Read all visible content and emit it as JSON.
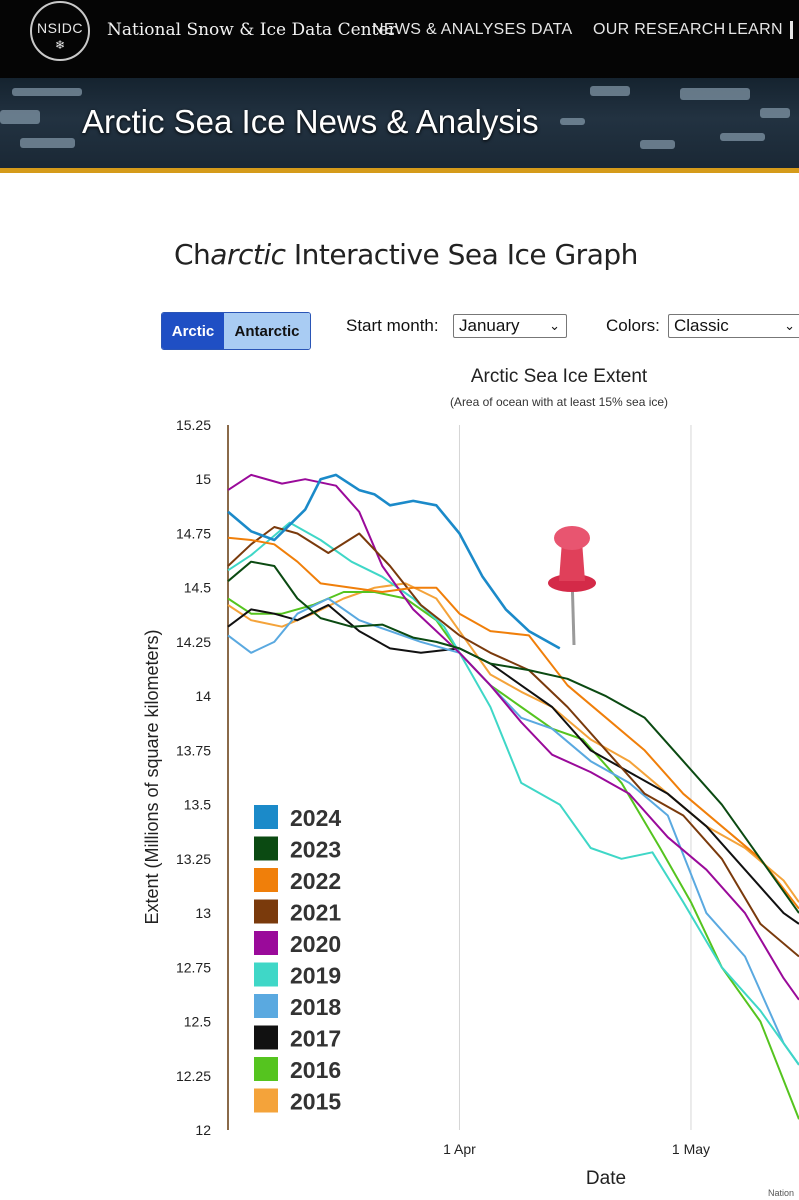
{
  "header": {
    "logo_text": "NSIDC",
    "site_name": "National Snow & Ice Data Center",
    "nav": [
      "NEWS & ANALYSES",
      "DATA",
      "OUR RESEARCH",
      "LEARN"
    ],
    "banner_title": "Arctic Sea Ice News & Analysis",
    "accent": "#d59b1a"
  },
  "page": {
    "title_pre": "Ch",
    "title_em": "arctic",
    "title_post": " Interactive Sea Ice Graph"
  },
  "controls": {
    "hemisphere": {
      "options": [
        "Arctic",
        "Antarctic"
      ],
      "selected": "Arctic"
    },
    "start_month_label": "Start month:",
    "start_month_value": "January",
    "colors_label": "Colors:",
    "colors_value": "Classic"
  },
  "credit": "Nation",
  "icons": {
    "annotation": "pushpin-icon",
    "logo_symbol": "snowflake-icon"
  },
  "chart_data": {
    "type": "line",
    "title": "Arctic Sea Ice Extent",
    "subtitle": "(Area of ocean with at least 15% sea ice)",
    "xlabel": "Date",
    "ylabel": "Extent (Millions of square kilometers)",
    "ylim": [
      12,
      15.25
    ],
    "y_ticks": [
      15.25,
      15,
      14.75,
      14.5,
      14.25,
      14,
      13.75,
      13.5,
      13.25,
      13,
      12.75,
      12.5,
      12.25,
      12
    ],
    "x_ticks": [
      {
        "date": "2024-04-01",
        "label": "1 Apr"
      },
      {
        "date": "2024-05-01",
        "label": "1 May"
      }
    ],
    "xlim": [
      "2024-03-02",
      "2024-05-15"
    ],
    "grid": "vertical",
    "legend_position": "bottom-left",
    "series": [
      {
        "name": "2024",
        "color": "#1b8ac9",
        "points": [
          [
            "2024-03-02",
            14.85
          ],
          [
            "2024-03-05",
            14.76
          ],
          [
            "2024-03-08",
            14.72
          ],
          [
            "2024-03-12",
            14.86
          ],
          [
            "2024-03-14",
            15.0
          ],
          [
            "2024-03-16",
            15.02
          ],
          [
            "2024-03-19",
            14.95
          ],
          [
            "2024-03-21",
            14.93
          ],
          [
            "2024-03-23",
            14.88
          ],
          [
            "2024-03-26",
            14.9
          ],
          [
            "2024-03-29",
            14.88
          ],
          [
            "2024-04-01",
            14.75
          ],
          [
            "2024-04-04",
            14.55
          ],
          [
            "2024-04-07",
            14.4
          ],
          [
            "2024-04-10",
            14.3
          ],
          [
            "2024-04-14",
            14.22
          ]
        ]
      },
      {
        "name": "2023",
        "color": "#0b4a12",
        "points": [
          [
            "2024-03-02",
            14.53
          ],
          [
            "2024-03-05",
            14.62
          ],
          [
            "2024-03-08",
            14.6
          ],
          [
            "2024-03-11",
            14.45
          ],
          [
            "2024-03-14",
            14.36
          ],
          [
            "2024-03-18",
            14.32
          ],
          [
            "2024-03-22",
            14.33
          ],
          [
            "2024-03-26",
            14.27
          ],
          [
            "2024-03-29",
            14.25
          ],
          [
            "2024-04-01",
            14.22
          ],
          [
            "2024-04-05",
            14.15
          ],
          [
            "2024-04-10",
            14.12
          ],
          [
            "2024-04-15",
            14.08
          ],
          [
            "2024-04-20",
            14.0
          ],
          [
            "2024-04-25",
            13.9
          ],
          [
            "2024-04-30",
            13.7
          ],
          [
            "2024-05-05",
            13.5
          ],
          [
            "2024-05-10",
            13.25
          ],
          [
            "2024-05-15",
            13.0
          ]
        ]
      },
      {
        "name": "2022",
        "color": "#f07f0a",
        "points": [
          [
            "2024-03-02",
            14.73
          ],
          [
            "2024-03-05",
            14.72
          ],
          [
            "2024-03-08",
            14.7
          ],
          [
            "2024-03-11",
            14.62
          ],
          [
            "2024-03-14",
            14.52
          ],
          [
            "2024-03-18",
            14.5
          ],
          [
            "2024-03-22",
            14.48
          ],
          [
            "2024-03-26",
            14.5
          ],
          [
            "2024-03-29",
            14.5
          ],
          [
            "2024-04-01",
            14.38
          ],
          [
            "2024-04-05",
            14.3
          ],
          [
            "2024-04-10",
            14.28
          ],
          [
            "2024-04-15",
            14.05
          ],
          [
            "2024-04-20",
            13.9
          ],
          [
            "2024-04-25",
            13.75
          ],
          [
            "2024-04-30",
            13.55
          ],
          [
            "2024-05-05",
            13.4
          ],
          [
            "2024-05-10",
            13.25
          ],
          [
            "2024-05-15",
            13.02
          ]
        ]
      },
      {
        "name": "2021",
        "color": "#7a3a0c",
        "points": [
          [
            "2024-03-02",
            14.6
          ],
          [
            "2024-03-05",
            14.7
          ],
          [
            "2024-03-08",
            14.78
          ],
          [
            "2024-03-11",
            14.75
          ],
          [
            "2024-03-15",
            14.66
          ],
          [
            "2024-03-19",
            14.75
          ],
          [
            "2024-03-23",
            14.6
          ],
          [
            "2024-03-27",
            14.42
          ],
          [
            "2024-04-01",
            14.28
          ],
          [
            "2024-04-05",
            14.2
          ],
          [
            "2024-04-10",
            14.12
          ],
          [
            "2024-04-15",
            13.95
          ],
          [
            "2024-04-20",
            13.75
          ],
          [
            "2024-04-25",
            13.55
          ],
          [
            "2024-04-30",
            13.45
          ],
          [
            "2024-05-05",
            13.25
          ],
          [
            "2024-05-10",
            12.95
          ],
          [
            "2024-05-15",
            12.8
          ]
        ]
      },
      {
        "name": "2020",
        "color": "#9a0a9a",
        "points": [
          [
            "2024-03-02",
            14.95
          ],
          [
            "2024-03-05",
            15.02
          ],
          [
            "2024-03-09",
            14.98
          ],
          [
            "2024-03-12",
            15.0
          ],
          [
            "2024-03-16",
            14.97
          ],
          [
            "2024-03-19",
            14.85
          ],
          [
            "2024-03-22",
            14.6
          ],
          [
            "2024-03-26",
            14.4
          ],
          [
            "2024-04-01",
            14.2
          ],
          [
            "2024-04-05",
            14.05
          ],
          [
            "2024-04-09",
            13.88
          ],
          [
            "2024-04-13",
            13.73
          ],
          [
            "2024-04-18",
            13.65
          ],
          [
            "2024-04-23",
            13.55
          ],
          [
            "2024-04-28",
            13.35
          ],
          [
            "2024-05-03",
            13.2
          ],
          [
            "2024-05-08",
            13.0
          ],
          [
            "2024-05-13",
            12.7
          ],
          [
            "2024-05-15",
            12.6
          ]
        ]
      },
      {
        "name": "2019",
        "color": "#3fd7c7",
        "points": [
          [
            "2024-03-02",
            14.58
          ],
          [
            "2024-03-05",
            14.65
          ],
          [
            "2024-03-10",
            14.8
          ],
          [
            "2024-03-14",
            14.72
          ],
          [
            "2024-03-18",
            14.62
          ],
          [
            "2024-03-22",
            14.55
          ],
          [
            "2024-03-26",
            14.45
          ],
          [
            "2024-03-30",
            14.32
          ],
          [
            "2024-04-01",
            14.2
          ],
          [
            "2024-04-05",
            13.95
          ],
          [
            "2024-04-09",
            13.6
          ],
          [
            "2024-04-14",
            13.5
          ],
          [
            "2024-04-18",
            13.3
          ],
          [
            "2024-04-22",
            13.25
          ],
          [
            "2024-04-26",
            13.28
          ],
          [
            "2024-04-30",
            13.05
          ],
          [
            "2024-05-05",
            12.75
          ],
          [
            "2024-05-10",
            12.55
          ],
          [
            "2024-05-15",
            12.3
          ]
        ]
      },
      {
        "name": "2018",
        "color": "#5aa9e0",
        "points": [
          [
            "2024-03-02",
            14.28
          ],
          [
            "2024-03-05",
            14.2
          ],
          [
            "2024-03-08",
            14.25
          ],
          [
            "2024-03-11",
            14.38
          ],
          [
            "2024-03-15",
            14.45
          ],
          [
            "2024-03-19",
            14.35
          ],
          [
            "2024-03-23",
            14.3
          ],
          [
            "2024-03-27",
            14.25
          ],
          [
            "2024-04-01",
            14.2
          ],
          [
            "2024-04-05",
            14.05
          ],
          [
            "2024-04-09",
            13.9
          ],
          [
            "2024-04-13",
            13.85
          ],
          [
            "2024-04-18",
            13.7
          ],
          [
            "2024-04-23",
            13.6
          ],
          [
            "2024-04-28",
            13.45
          ],
          [
            "2024-05-03",
            13.0
          ],
          [
            "2024-05-08",
            12.8
          ],
          [
            "2024-05-13",
            12.4
          ],
          [
            "2024-05-15",
            12.3
          ]
        ]
      },
      {
        "name": "2017",
        "color": "#111111",
        "points": [
          [
            "2024-03-02",
            14.32
          ],
          [
            "2024-03-05",
            14.4
          ],
          [
            "2024-03-08",
            14.38
          ],
          [
            "2024-03-11",
            14.35
          ],
          [
            "2024-03-15",
            14.42
          ],
          [
            "2024-03-19",
            14.3
          ],
          [
            "2024-03-23",
            14.22
          ],
          [
            "2024-03-27",
            14.2
          ],
          [
            "2024-04-01",
            14.22
          ],
          [
            "2024-04-05",
            14.15
          ],
          [
            "2024-04-09",
            14.05
          ],
          [
            "2024-04-13",
            13.95
          ],
          [
            "2024-04-18",
            13.75
          ],
          [
            "2024-04-23",
            13.65
          ],
          [
            "2024-04-28",
            13.55
          ],
          [
            "2024-05-03",
            13.4
          ],
          [
            "2024-05-08",
            13.2
          ],
          [
            "2024-05-13",
            13.0
          ],
          [
            "2024-05-15",
            12.95
          ]
        ]
      },
      {
        "name": "2016",
        "color": "#55c41f",
        "points": [
          [
            "2024-03-02",
            14.45
          ],
          [
            "2024-03-05",
            14.38
          ],
          [
            "2024-03-09",
            14.38
          ],
          [
            "2024-03-13",
            14.42
          ],
          [
            "2024-03-17",
            14.48
          ],
          [
            "2024-03-21",
            14.48
          ],
          [
            "2024-03-25",
            14.45
          ],
          [
            "2024-03-29",
            14.35
          ],
          [
            "2024-04-01",
            14.2
          ],
          [
            "2024-04-05",
            14.05
          ],
          [
            "2024-04-09",
            13.95
          ],
          [
            "2024-04-13",
            13.85
          ],
          [
            "2024-04-17",
            13.8
          ],
          [
            "2024-04-22",
            13.6
          ],
          [
            "2024-04-27",
            13.3
          ],
          [
            "2024-05-01",
            13.05
          ],
          [
            "2024-05-05",
            12.75
          ],
          [
            "2024-05-10",
            12.5
          ],
          [
            "2024-05-15",
            12.05
          ]
        ]
      },
      {
        "name": "2015",
        "color": "#f4a33a",
        "points": [
          [
            "2024-03-02",
            14.42
          ],
          [
            "2024-03-05",
            14.35
          ],
          [
            "2024-03-09",
            14.32
          ],
          [
            "2024-03-13",
            14.38
          ],
          [
            "2024-03-17",
            14.45
          ],
          [
            "2024-03-21",
            14.5
          ],
          [
            "2024-03-25",
            14.52
          ],
          [
            "2024-03-29",
            14.45
          ],
          [
            "2024-04-01",
            14.3
          ],
          [
            "2024-04-05",
            14.1
          ],
          [
            "2024-04-09",
            14.02
          ],
          [
            "2024-04-13",
            13.95
          ],
          [
            "2024-04-18",
            13.8
          ],
          [
            "2024-04-23",
            13.7
          ],
          [
            "2024-04-28",
            13.55
          ],
          [
            "2024-05-03",
            13.4
          ],
          [
            "2024-05-08",
            13.3
          ],
          [
            "2024-05-13",
            13.15
          ],
          [
            "2024-05-15",
            13.05
          ]
        ]
      }
    ]
  }
}
